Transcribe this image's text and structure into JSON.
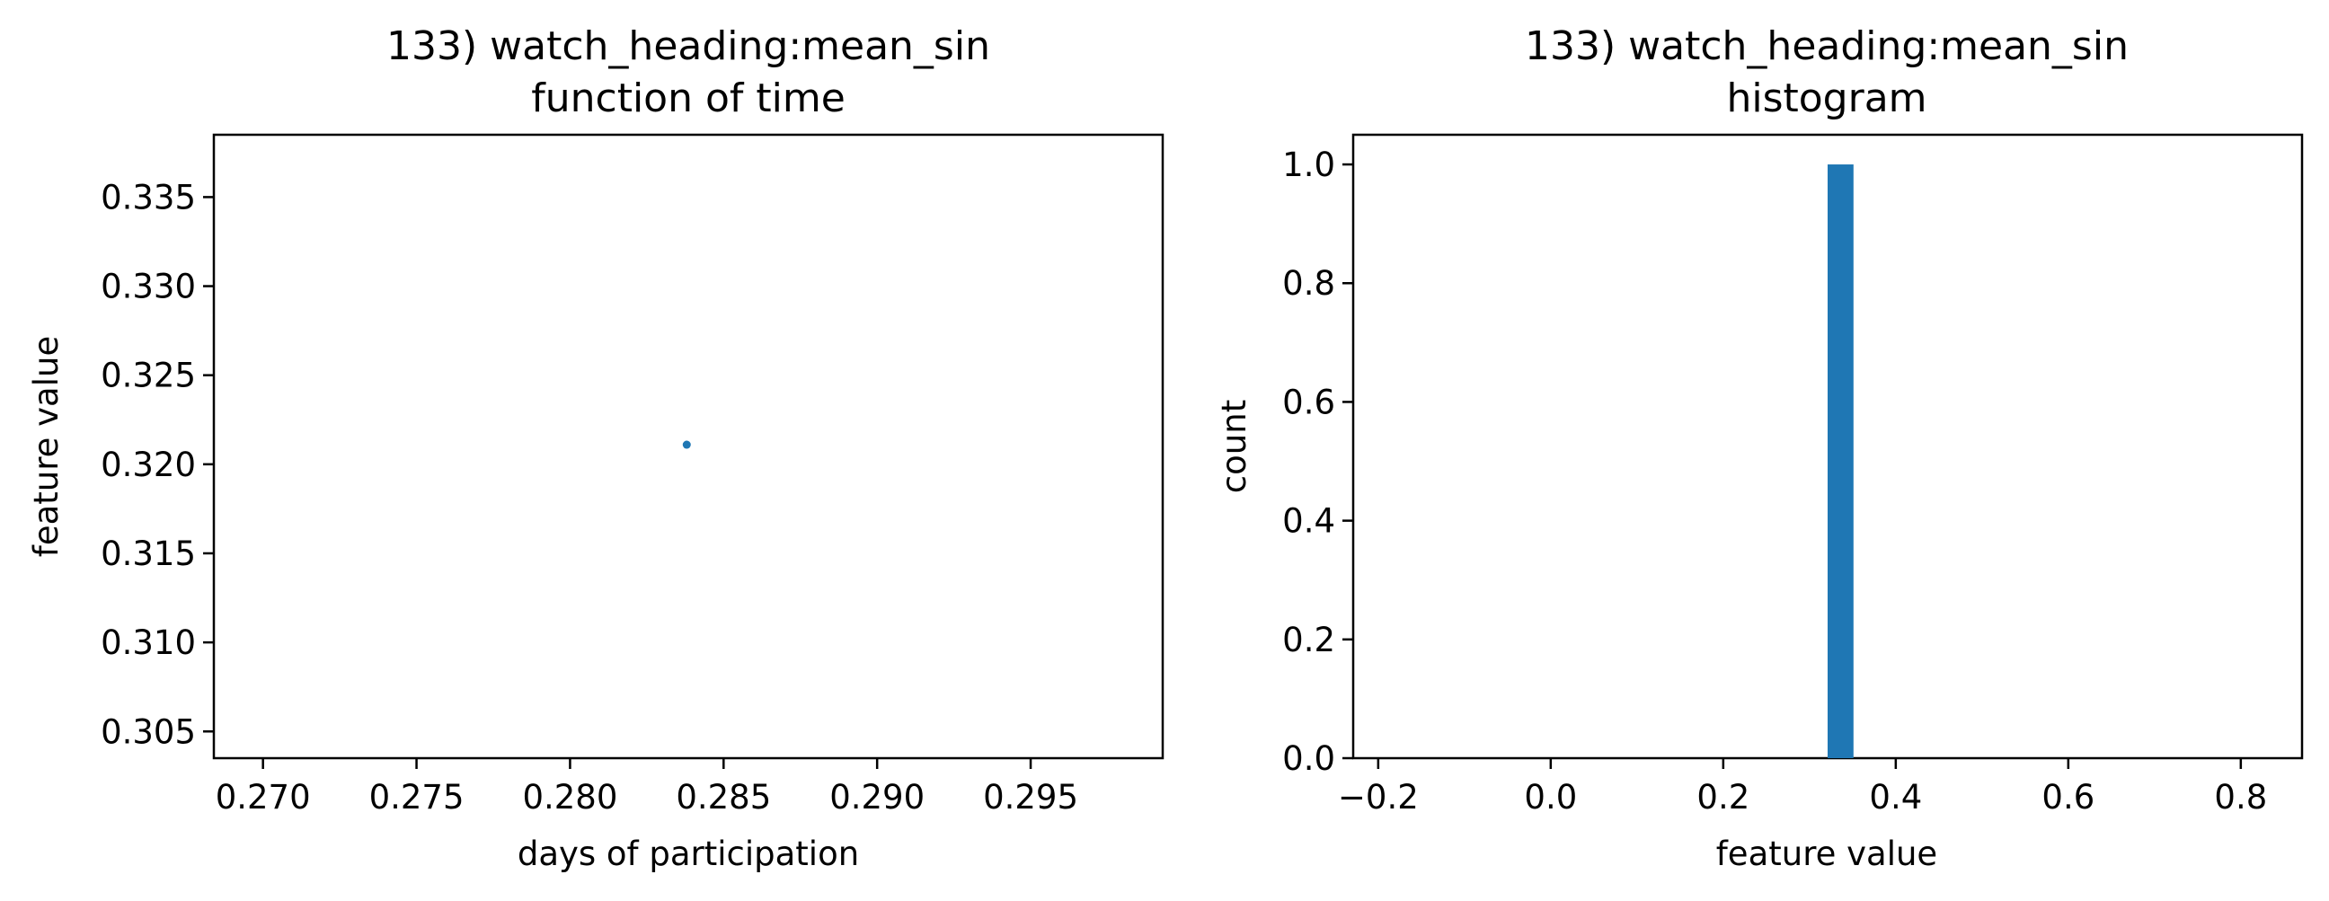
{
  "chart_data": [
    {
      "type": "scatter",
      "title_line1": "133) watch_heading:mean_sin",
      "title_line2": "function of time",
      "xlabel": "days of participation",
      "ylabel": "feature value",
      "xlim": [
        0.2684,
        0.2993
      ],
      "ylim": [
        0.3035,
        0.3385
      ],
      "xticks": [
        0.27,
        0.275,
        0.28,
        0.285,
        0.29,
        0.295
      ],
      "xtick_labels": [
        "0.270",
        "0.275",
        "0.280",
        "0.285",
        "0.290",
        "0.295"
      ],
      "yticks": [
        0.305,
        0.31,
        0.315,
        0.32,
        0.325,
        0.33,
        0.335
      ],
      "ytick_labels": [
        "0.305",
        "0.310",
        "0.315",
        "0.320",
        "0.325",
        "0.330",
        "0.335"
      ],
      "points": [
        {
          "x": 0.2838,
          "y": 0.3211
        }
      ],
      "color": "#1f77b4",
      "grid": false
    },
    {
      "type": "bar",
      "title_line1": "133) watch_heading:mean_sin",
      "title_line2": "histogram",
      "xlabel": "feature value",
      "ylabel": "count",
      "xlim": [
        -0.229,
        0.871
      ],
      "ylim": [
        0,
        1.05
      ],
      "xticks": [
        -0.2,
        0.0,
        0.2,
        0.4,
        0.6,
        0.8
      ],
      "xtick_labels": [
        "−0.2",
        "0.0",
        "0.2",
        "0.4",
        "0.6",
        "0.8"
      ],
      "yticks": [
        0.0,
        0.2,
        0.4,
        0.6,
        0.8,
        1.0
      ],
      "ytick_labels": [
        "0.0",
        "0.2",
        "0.4",
        "0.6",
        "0.8",
        "1.0"
      ],
      "bars": [
        {
          "x_start": 0.321,
          "x_end": 0.351,
          "count": 1.0
        }
      ],
      "color": "#1f77b4",
      "grid": false
    }
  ]
}
